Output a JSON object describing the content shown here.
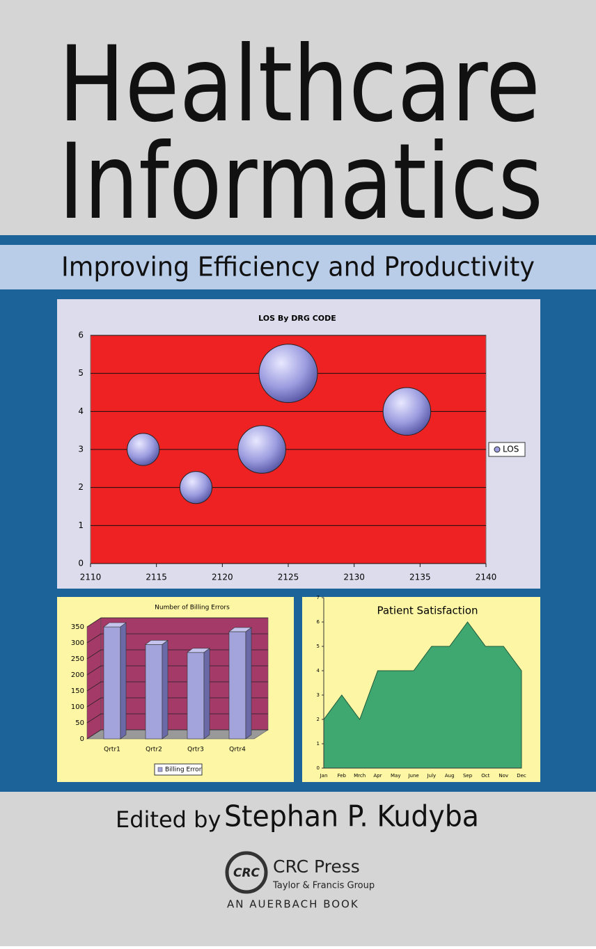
{
  "cover": {
    "title_line1": "Healthcare",
    "title_line2": "Informatics",
    "subtitle": "Improving Efficiency and Productivity",
    "edited_by": "Edited by",
    "editor": "Stephan P. Kudyba",
    "logo": "CRC",
    "publisher": "CRC Press",
    "publisher_group": "Taylor & Francis Group",
    "imprint": "AN AUERBACH BOOK"
  },
  "chart_data": [
    {
      "type": "bubble",
      "title": "LOS By DRG CODE",
      "plot_background": "#ee2222",
      "series": [
        {
          "name": "LOS",
          "color": "#9c9ce0",
          "x": [
            2114,
            2118,
            2123,
            2125,
            2134
          ],
          "values": [
            3,
            2,
            3,
            5,
            4
          ],
          "sizes": [
            10,
            10,
            22,
            33,
            22
          ]
        }
      ],
      "xlim": [
        2110,
        2140
      ],
      "xticks": [
        2110,
        2115,
        2120,
        2125,
        2130,
        2135,
        2140
      ],
      "ylim": [
        0,
        6
      ],
      "yticks": [
        0,
        1,
        2,
        3,
        4,
        5,
        6
      ],
      "grid": true,
      "legend": "right"
    },
    {
      "type": "bar",
      "title": "Number of Billing Errors",
      "plot_background": "#a33a68",
      "categories": [
        "Qrtr1",
        "Qrtr2",
        "Qrtr3",
        "Qrtr4"
      ],
      "series": [
        {
          "name": "Billing Error",
          "color": "#a4a4dc",
          "values": [
            350,
            295,
            270,
            335
          ]
        }
      ],
      "ylim": [
        0,
        350
      ],
      "yticks": [
        0,
        50,
        100,
        150,
        200,
        250,
        300,
        350
      ],
      "grid": true,
      "legend": "bottom"
    },
    {
      "type": "area",
      "title": "Patient Satisfaction",
      "color": "#3ea870",
      "categories": [
        "Jan",
        "Feb",
        "Mrch",
        "Apr",
        "May",
        "June",
        "July",
        "Aug",
        "Sep",
        "Oct",
        "Nov",
        "Dec"
      ],
      "values": [
        2,
        3,
        2,
        4,
        4,
        4,
        5,
        5,
        6,
        5,
        5,
        4
      ],
      "ylim": [
        0,
        7
      ],
      "yticks": [
        0,
        1,
        2,
        3,
        4,
        5,
        6,
        7
      ]
    }
  ]
}
